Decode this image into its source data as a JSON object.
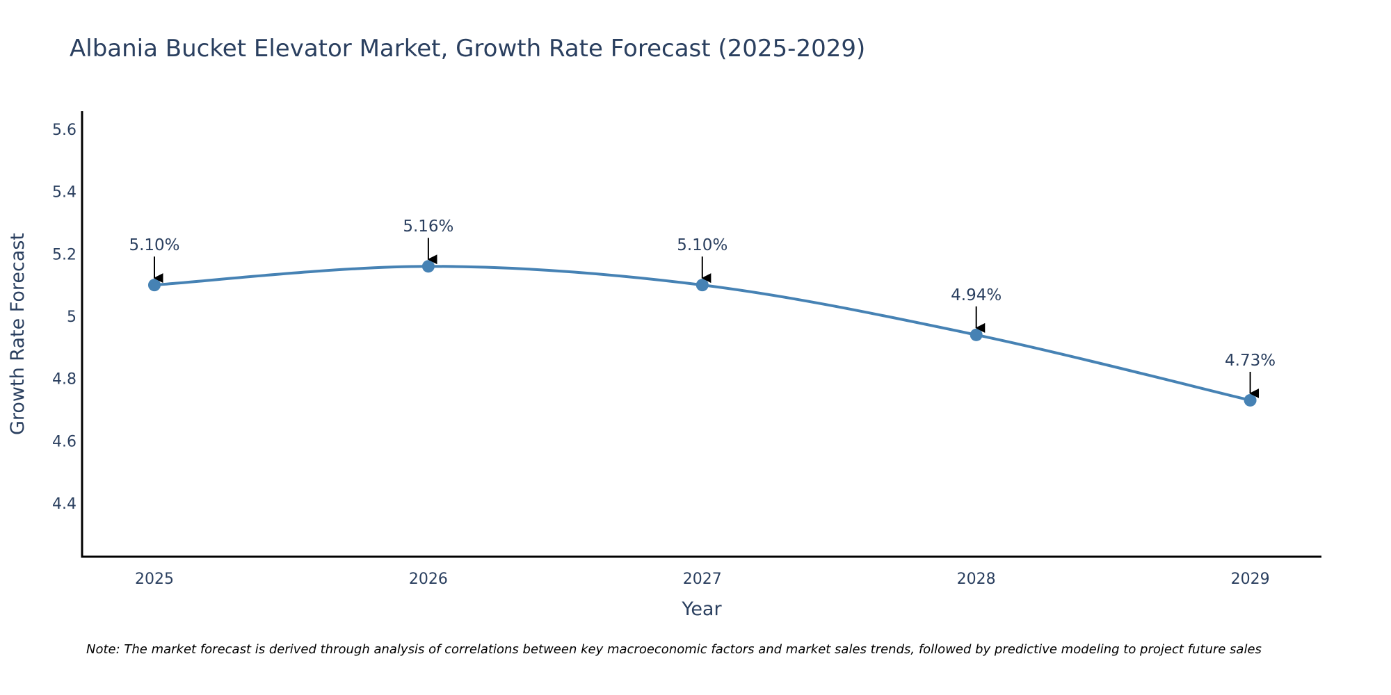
{
  "chart_data": {
    "type": "line",
    "title": "Albania Bucket Elevator Market, Growth Rate Forecast (2025-2029)",
    "xlabel": "Year",
    "ylabel": "Growth Rate Forecast",
    "x": [
      2025,
      2026,
      2027,
      2028,
      2029
    ],
    "series": [
      {
        "name": "Growth Rate Forecast",
        "values": [
          5.1,
          5.16,
          5.1,
          4.94,
          4.73
        ],
        "color": "#4682B4",
        "line_shape": "spline",
        "markers": true
      }
    ],
    "annotations": [
      "5.10%",
      "5.16%",
      "5.10%",
      "4.94%",
      "4.73%"
    ],
    "xticks": [
      "2025",
      "2026",
      "2027",
      "2028",
      "2029"
    ],
    "yticks": [
      4.4,
      4.6,
      4.8,
      5,
      5.2,
      5.4,
      5.6
    ],
    "ytick_labels": [
      "4.4",
      "4.6",
      "4.8",
      "5",
      "5.2",
      "5.4",
      "5.6"
    ],
    "xlim": [
      2024.736,
      2029.26
    ],
    "ylim": [
      4.228,
      5.658
    ],
    "grid": false,
    "legend": "none",
    "note": "Note: The market forecast is derived through analysis of correlations between key macroeconomic factors and market sales trends, followed by predictive modeling to project future sales"
  }
}
